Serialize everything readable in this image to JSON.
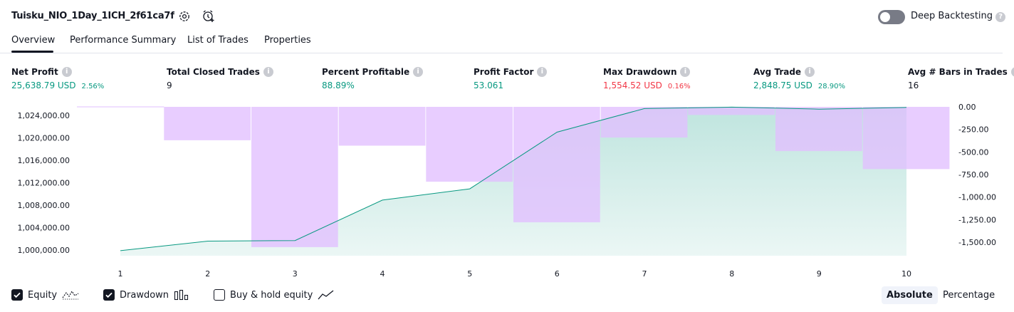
{
  "header": {
    "strategy_name": "Tuisku_NIO_1Day_1ICH_2f61ca7f",
    "settings_icon": "gear-icon",
    "alert_icon": "add-alarm-clock-icon",
    "deep_backtesting_label": "Deep Backtesting",
    "deep_backtesting_enabled": false,
    "help_icon": "question-icon"
  },
  "tabs": [
    {
      "label": "Overview",
      "active": true
    },
    {
      "label": "Performance Summary",
      "active": false
    },
    {
      "label": "List of Trades",
      "active": false
    },
    {
      "label": "Properties",
      "active": false
    }
  ],
  "stats": {
    "net_profit": {
      "label": "Net Profit",
      "value": "25,638.79 USD",
      "pct": "2.56%"
    },
    "total_closed_trades": {
      "label": "Total Closed Trades",
      "value": "9"
    },
    "percent_profitable": {
      "label": "Percent Profitable",
      "value": "88.89%"
    },
    "profit_factor": {
      "label": "Profit Factor",
      "value": "53.061"
    },
    "max_drawdown": {
      "label": "Max Drawdown",
      "value": "1,554.52 USD",
      "pct": "0.16%"
    },
    "avg_trade": {
      "label": "Avg Trade",
      "value": "2,848.75 USD",
      "pct": "28.90%"
    },
    "avg_bars": {
      "label": "Avg # Bars in Trades",
      "value": "16"
    }
  },
  "chart_data": {
    "type": "line",
    "x": [
      1,
      2,
      3,
      4,
      5,
      6,
      7,
      8,
      9,
      10
    ],
    "x_tick_labels": [
      "1",
      "2",
      "3",
      "4",
      "5",
      "6",
      "7",
      "8",
      "9",
      "10"
    ],
    "left_axis": {
      "ylim": [
        999000,
        1025500
      ],
      "ticks": [
        1000000,
        1004000,
        1008000,
        1012000,
        1016000,
        1020000,
        1024000
      ],
      "tick_labels": [
        "1,000,000.00",
        "1,004,000.00",
        "1,008,000.00",
        "1,012,000.00",
        "1,016,000.00",
        "1,020,000.00",
        "1,024,000.00"
      ]
    },
    "right_axis": {
      "ylim": [
        -1650,
        0
      ],
      "ticks": [
        0,
        -250,
        -500,
        -750,
        -1000,
        -1250,
        -1500
      ],
      "tick_labels": [
        "0.00",
        "-250.00",
        "-500.00",
        "-750.00",
        "-1,000.00",
        "-1,250.00",
        "-1,500.00"
      ]
    },
    "series": [
      {
        "name": "Equity",
        "type": "area",
        "axis": "left",
        "color": "#089981",
        "values": [
          999900,
          1001600,
          1001700,
          1008900,
          1010900,
          1021000,
          1025200,
          1025450,
          1025100,
          1025400
        ]
      },
      {
        "name": "Drawdown",
        "type": "bar",
        "axis": "right",
        "color": "#e1bfff",
        "values": [
          0,
          -370,
          -1554.52,
          -430,
          -830,
          -1280,
          -340,
          -90,
          -490,
          -690
        ]
      }
    ],
    "grid": false,
    "legend": "bottom-left"
  },
  "legend": [
    {
      "label": "Equity",
      "checked": true,
      "icon": "equity-line-icon"
    },
    {
      "label": "Drawdown",
      "checked": true,
      "icon": "drawdown-bars-icon"
    },
    {
      "label": "Buy & hold equity",
      "checked": false,
      "icon": "buy-hold-line-icon"
    }
  ],
  "view_modes": [
    {
      "label": "Absolute",
      "active": true
    },
    {
      "label": "Percentage",
      "active": false
    }
  ]
}
